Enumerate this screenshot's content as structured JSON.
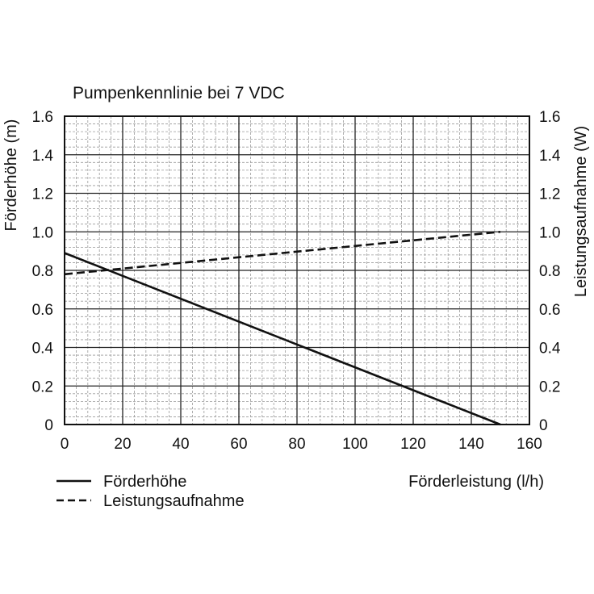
{
  "chart_data": {
    "type": "line",
    "title": "Pumpenkennlinie bei 7 VDC",
    "xlabel": "Förderleistung (l/h)",
    "ylabel_left": "Förderhöhe (m)",
    "ylabel_right": "Leistungsaufnahme (W)",
    "xlim": [
      0,
      160
    ],
    "ylim_left": [
      0,
      1.6
    ],
    "ylim_right": [
      0,
      1.6
    ],
    "x_ticks": [
      "0",
      "20",
      "40",
      "60",
      "80",
      "100",
      "120",
      "140",
      "160"
    ],
    "y_ticks_left": [
      "0",
      "0.2",
      "0.4",
      "0.6",
      "0.8",
      "1.0",
      "1.2",
      "1.4",
      "1.6"
    ],
    "y_ticks_right": [
      "0",
      "0.2",
      "0.4",
      "0.6",
      "0.8",
      "1.0",
      "1.2",
      "1.4",
      "1.6"
    ],
    "grid": true,
    "legend_position": "bottom-left",
    "series": [
      {
        "name": "Förderhöhe",
        "axis": "left",
        "style": "solid",
        "x": [
          0,
          150
        ],
        "y": [
          0.89,
          0.0
        ]
      },
      {
        "name": "Leistungsaufnahme",
        "axis": "right",
        "style": "dashed",
        "x": [
          0,
          150
        ],
        "y": [
          0.78,
          1.0
        ]
      }
    ]
  }
}
